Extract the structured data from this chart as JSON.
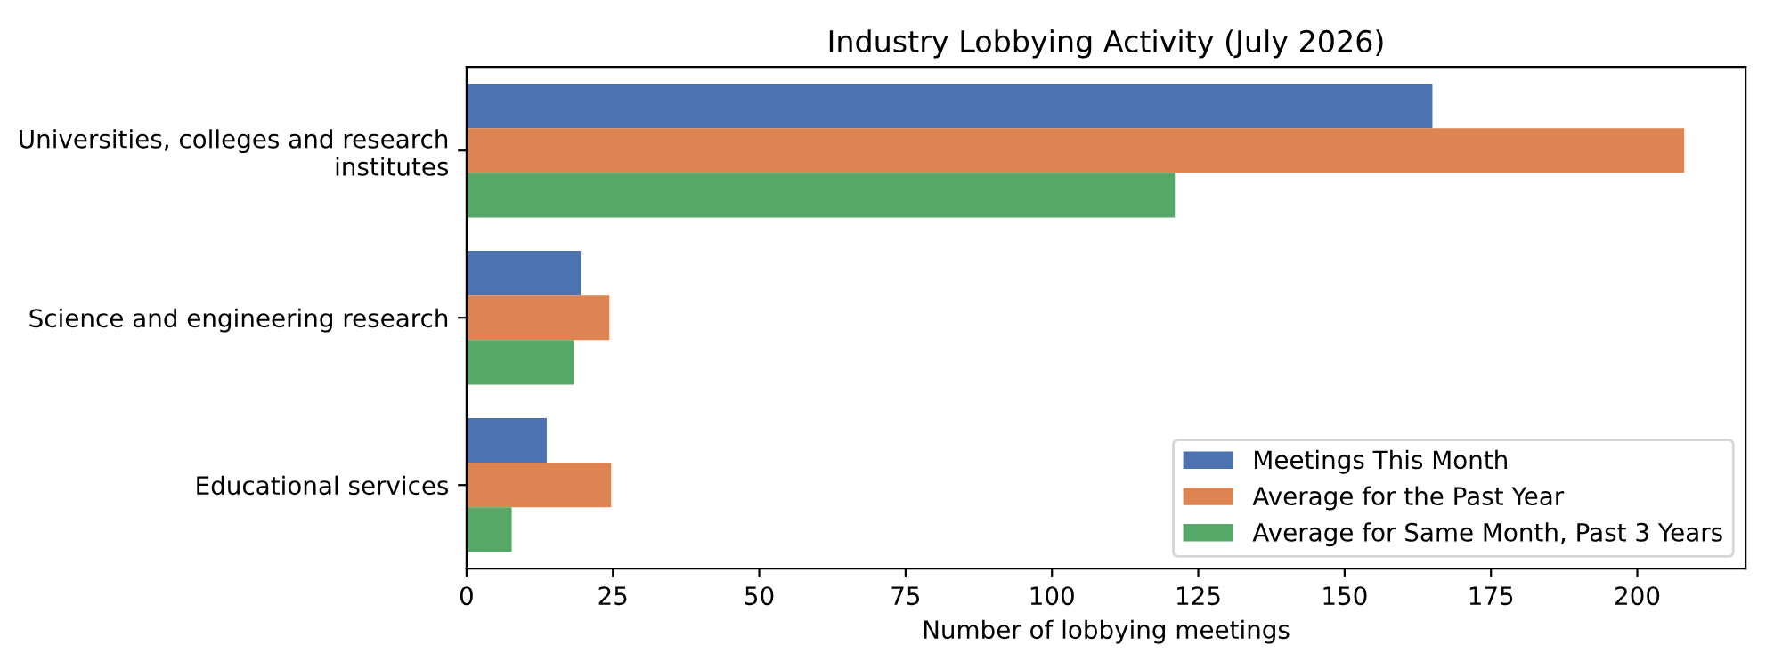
{
  "chart_data": {
    "type": "bar",
    "orientation": "horizontal",
    "title": "Industry Lobbying Activity (July 2026)",
    "xlabel": "Number of lobbying meetings",
    "categories": [
      "Universities, colleges and research\ninstitutes",
      "Science and engineering research",
      "Educational services"
    ],
    "series": [
      {
        "name": "Meetings This Month",
        "color": "#4c72b0",
        "values": [
          165,
          19.5,
          13.7
        ]
      },
      {
        "name": "Average for the Past Year",
        "color": "#dd8452",
        "values": [
          208,
          24.4,
          24.7
        ]
      },
      {
        "name": "Average for Same Month, Past 3 Years",
        "color": "#55a868",
        "values": [
          121,
          18.3,
          7.7
        ]
      }
    ],
    "xlim": [
      0,
      218.5
    ],
    "xticks": [
      0,
      25,
      50,
      75,
      100,
      125,
      150,
      175,
      200
    ],
    "legend": "lower right",
    "grid": false
  }
}
